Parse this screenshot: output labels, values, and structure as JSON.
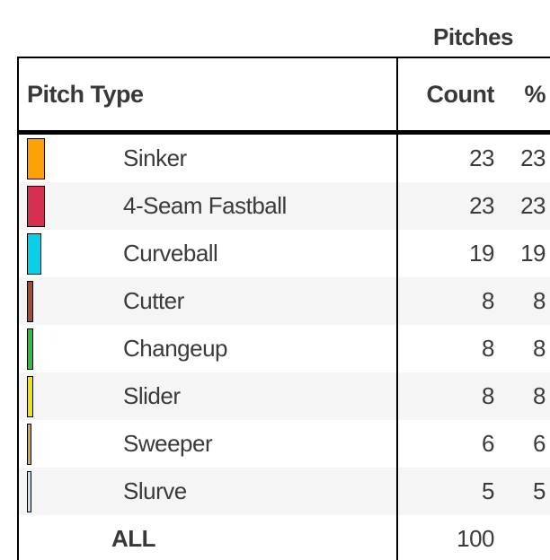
{
  "header": {
    "group_label": "Pitches",
    "col_pitch_type": "Pitch Type",
    "col_count": "Count",
    "col_pct": "%"
  },
  "rows": [
    {
      "label": "Sinker",
      "count": 23,
      "pct": 23,
      "color": "#FBA104"
    },
    {
      "label": "4-Seam Fastball",
      "count": 23,
      "pct": 23,
      "color": "#D4304E"
    },
    {
      "label": "Curveball",
      "count": 19,
      "pct": 19,
      "color": "#0BCEE8"
    },
    {
      "label": "Cutter",
      "count": 8,
      "pct": 8,
      "color": "#A34A31"
    },
    {
      "label": "Changeup",
      "count": 8,
      "pct": 8,
      "color": "#2AC23C"
    },
    {
      "label": "Slider",
      "count": 8,
      "pct": 8,
      "color": "#EEE410"
    },
    {
      "label": "Sweeper",
      "count": 6,
      "pct": 6,
      "color": "#D9A83B"
    },
    {
      "label": "Slurve",
      "count": 5,
      "pct": 5,
      "color": "#CEDCEE"
    }
  ],
  "total_row": {
    "label": "ALL",
    "count": 100,
    "pct": ""
  },
  "style": {
    "stripe_color": "#F5F5F5",
    "text_color": "#3a3a3a",
    "border_color": "#000000",
    "background": "#ffffff"
  },
  "chart_data": {
    "type": "table",
    "title": "Pitches",
    "columns": [
      "Pitch Type",
      "Count",
      "%"
    ],
    "rows": [
      [
        "Sinker",
        23,
        23
      ],
      [
        "4-Seam Fastball",
        23,
        23
      ],
      [
        "Curveball",
        19,
        19
      ],
      [
        "Cutter",
        8,
        8
      ],
      [
        "Changeup",
        8,
        8
      ],
      [
        "Slider",
        8,
        8
      ],
      [
        "Sweeper",
        6,
        6
      ],
      [
        "Slurve",
        5,
        5
      ],
      [
        "ALL",
        100,
        null
      ]
    ],
    "swatch_colors": [
      "#FBA104",
      "#D4304E",
      "#0BCEE8",
      "#A34A31",
      "#2AC23C",
      "#EEE410",
      "#D9A83B",
      "#CEDCEE"
    ],
    "notes": "swatch width is proportional to count; rows striped alternately"
  }
}
